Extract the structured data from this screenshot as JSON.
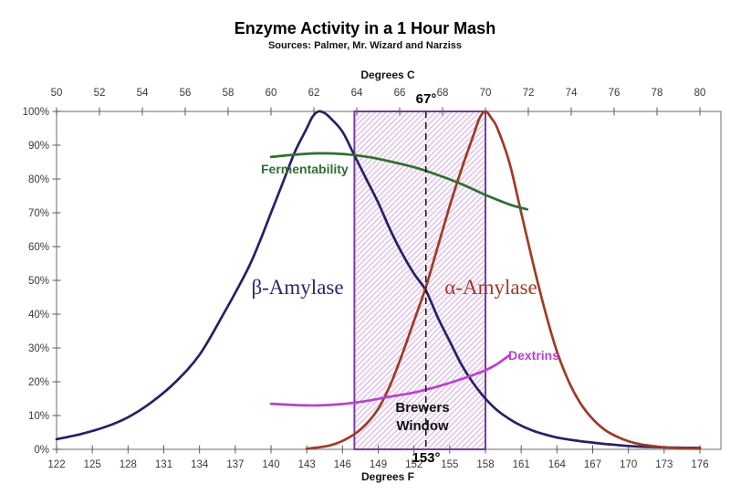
{
  "title": "Enzyme Activity in a 1 Hour Mash",
  "subtitle": "Sources: Palmer, Mr. Wizard and Narziss",
  "chart_data": {
    "type": "line",
    "top_axis": {
      "label": "Degrees C",
      "ticks": [
        50,
        52,
        54,
        56,
        58,
        60,
        62,
        64,
        66,
        68,
        70,
        72,
        74,
        76,
        78,
        80
      ],
      "range": [
        50,
        81
      ]
    },
    "bottom_axis": {
      "label": "Degrees F",
      "ticks": [
        122,
        125,
        128,
        131,
        134,
        137,
        140,
        143,
        146,
        149,
        152,
        155,
        158,
        161,
        164,
        167,
        170,
        173,
        176
      ],
      "range": [
        122,
        177.8
      ]
    },
    "y_axis": {
      "ticks": [
        "0%",
        "10%",
        "20%",
        "30%",
        "40%",
        "50%",
        "60%",
        "70%",
        "80%",
        "90%",
        "100%"
      ],
      "range": [
        0,
        100
      ]
    },
    "series": [
      {
        "name": "β-Amylase",
        "color": "#252168",
        "points": [
          [
            122,
            3
          ],
          [
            124,
            4.5
          ],
          [
            126,
            6.5
          ],
          [
            128,
            9.5
          ],
          [
            130,
            14
          ],
          [
            132,
            20
          ],
          [
            134,
            28
          ],
          [
            136,
            40
          ],
          [
            138,
            53
          ],
          [
            139,
            61
          ],
          [
            140,
            70
          ],
          [
            141,
            79
          ],
          [
            142,
            88
          ],
          [
            143,
            95
          ],
          [
            143.5,
            98.5
          ],
          [
            144,
            100
          ],
          [
            144.5,
            99.5
          ],
          [
            145,
            98
          ],
          [
            146,
            94
          ],
          [
            147,
            87
          ],
          [
            148,
            80
          ],
          [
            149,
            73
          ],
          [
            150,
            65
          ],
          [
            151,
            58
          ],
          [
            152,
            52
          ],
          [
            153,
            47
          ],
          [
            154,
            39
          ],
          [
            155,
            32
          ],
          [
            156,
            25
          ],
          [
            157,
            19.5
          ],
          [
            158,
            15
          ],
          [
            159,
            11.5
          ],
          [
            160,
            9
          ],
          [
            161,
            7
          ],
          [
            162,
            5.5
          ],
          [
            163,
            4.4
          ],
          [
            164,
            3.5
          ],
          [
            165,
            2.9
          ],
          [
            166,
            2.4
          ],
          [
            167,
            2
          ],
          [
            168,
            1.6
          ],
          [
            169,
            1.3
          ],
          [
            170,
            1
          ],
          [
            171,
            0.8
          ],
          [
            172,
            0.7
          ],
          [
            173,
            0.6
          ],
          [
            174,
            0.5
          ],
          [
            175,
            0.45
          ],
          [
            176,
            0.4
          ]
        ]
      },
      {
        "name": "α-Amylase",
        "color": "#A03A24",
        "points": [
          [
            143,
            0.2
          ],
          [
            144,
            0.6
          ],
          [
            145,
            1.2
          ],
          [
            146,
            2.5
          ],
          [
            147,
            4.5
          ],
          [
            148,
            7.5
          ],
          [
            149,
            12
          ],
          [
            150,
            19
          ],
          [
            151,
            28
          ],
          [
            152,
            38
          ],
          [
            153,
            48
          ],
          [
            154,
            60
          ],
          [
            155,
            72
          ],
          [
            156,
            83
          ],
          [
            157,
            93
          ],
          [
            157.5,
            98
          ],
          [
            158,
            100
          ],
          [
            158.5,
            98
          ],
          [
            159,
            95
          ],
          [
            160,
            85
          ],
          [
            161,
            70
          ],
          [
            162,
            55
          ],
          [
            163,
            41
          ],
          [
            164,
            29
          ],
          [
            165,
            20
          ],
          [
            166,
            13.5
          ],
          [
            167,
            9
          ],
          [
            168,
            5.8
          ],
          [
            169,
            3.8
          ],
          [
            170,
            2.4
          ],
          [
            171,
            1.5
          ],
          [
            172,
            1
          ],
          [
            173,
            0.6
          ],
          [
            174,
            0.4
          ],
          [
            175,
            0.3
          ],
          [
            176,
            0.2
          ]
        ]
      },
      {
        "name": "Fermentability",
        "color": "#2D7030",
        "points": [
          [
            140,
            86.5
          ],
          [
            142,
            87.2
          ],
          [
            144,
            87.6
          ],
          [
            146,
            87.4
          ],
          [
            148,
            86.6
          ],
          [
            150,
            85.2
          ],
          [
            152,
            83.5
          ],
          [
            154,
            81.2
          ],
          [
            156,
            78.5
          ],
          [
            158,
            75.3
          ],
          [
            160,
            72.5
          ],
          [
            161.5,
            71
          ]
        ]
      },
      {
        "name": "Dextrins",
        "color": "#BB3FD3",
        "points": [
          [
            140,
            13.5
          ],
          [
            142,
            13.1
          ],
          [
            144,
            13
          ],
          [
            146,
            13.4
          ],
          [
            148,
            14.3
          ],
          [
            150,
            15.6
          ],
          [
            152,
            16.8
          ],
          [
            154,
            18.6
          ],
          [
            156,
            20.8
          ],
          [
            158,
            23.4
          ],
          [
            159,
            25.3
          ],
          [
            160,
            27.8
          ]
        ]
      }
    ],
    "annotations": {
      "brewers_window": {
        "label": "Brewers Window",
        "from_f": 147,
        "to_f": 158,
        "border_color": "#7A3AA0",
        "hatch_color": "#D5B6E0"
      },
      "dashed_line": {
        "f": 153,
        "top_label": "67°",
        "bottom_label": "153°"
      }
    }
  }
}
